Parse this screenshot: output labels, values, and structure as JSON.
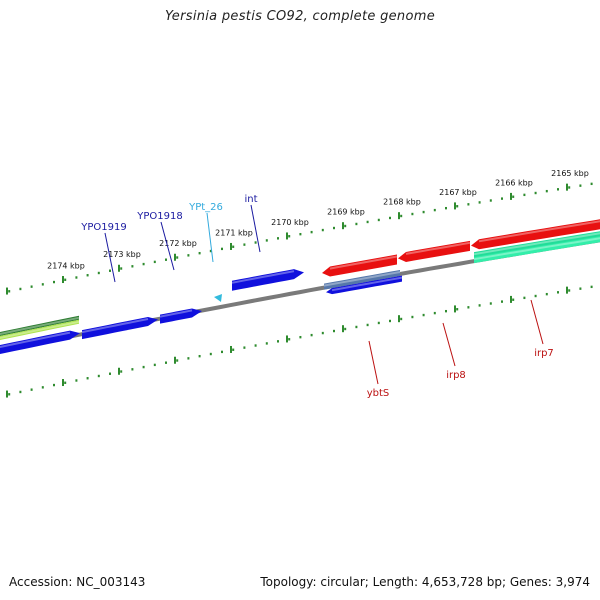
{
  "title": "Yersinia pestis CO92, complete genome",
  "footer": {
    "accession": "Accession: NC_003143",
    "summary": "Topology: circular; Length: 4,653,728 bp; Genes: 3,974"
  },
  "colors": {
    "backbone": "#7a7a7a",
    "tick": "#2e8b2e",
    "blue_gene": "#1010dd",
    "red_gene": "#e81010",
    "cyan_gene": "#33bbdd",
    "teal_gene": "#22dd99",
    "steel_gene": "#5577aa",
    "green_dark": "#2e7d32",
    "green_light": "#aee34f",
    "label_blue": "#1a1aa0",
    "label_cyan": "#33aadd",
    "label_red": "#bb1111"
  },
  "ticks": [
    {
      "label": "2165 kbp"
    },
    {
      "label": "2166 kbp"
    },
    {
      "label": "2167 kbp"
    },
    {
      "label": "2168 kbp"
    },
    {
      "label": "2169 kbp"
    },
    {
      "label": "2170 kbp"
    },
    {
      "label": "2171 kbp"
    },
    {
      "label": "2172 kbp"
    },
    {
      "label": "2173 kbp"
    },
    {
      "label": "2174 kbp"
    }
  ],
  "gene_labels": [
    {
      "name": "YPO1919",
      "color": "label_blue"
    },
    {
      "name": "YPO1918",
      "color": "label_blue"
    },
    {
      "name": "YPt_26",
      "color": "label_cyan"
    },
    {
      "name": "int",
      "color": "label_blue"
    },
    {
      "name": "ybtS",
      "color": "label_red"
    },
    {
      "name": "irp8",
      "color": "label_red"
    },
    {
      "name": "irp7",
      "color": "label_red"
    }
  ]
}
